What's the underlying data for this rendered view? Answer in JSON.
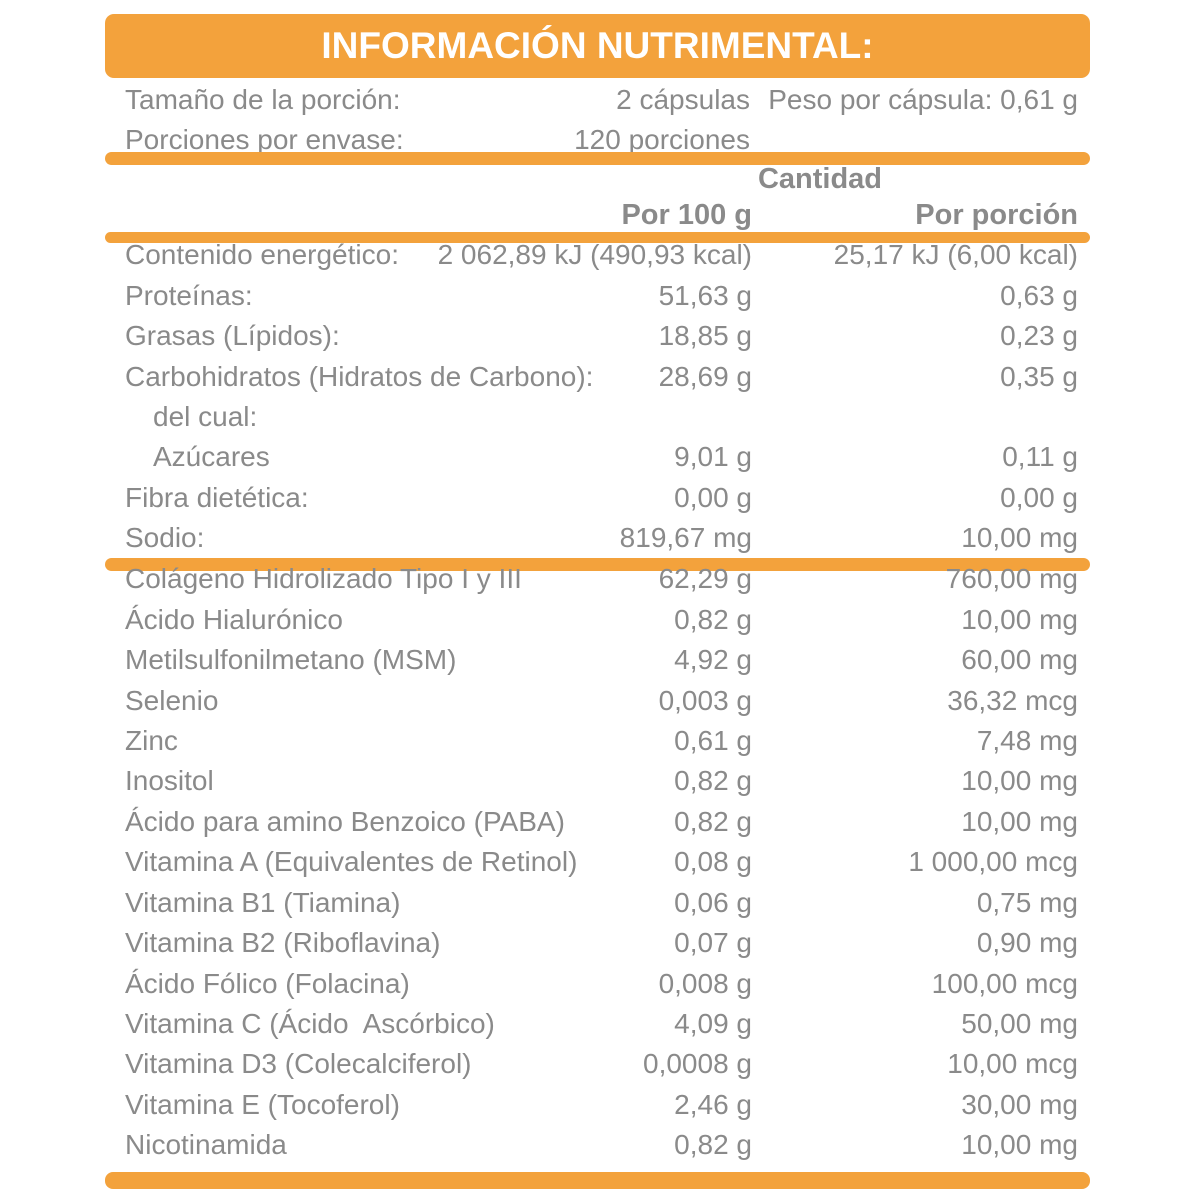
{
  "title": "INFORMACIÓN NUTRIMENTAL:",
  "serving_info": {
    "serving_size_label": "Tamaño de la porción:",
    "serving_size_value": "2 cápsulas",
    "capsule_weight": "Peso por cápsula: 0,61 g",
    "servings_label": "Porciones por envase:",
    "servings_value": "120 porciones"
  },
  "table": {
    "quantity_header": "Cantidad",
    "col_per_100g": "Por 100 g",
    "col_per_portion": "Por porción",
    "nutrients": [
      {
        "label": "Contenido energético:",
        "per100": "2 062,89 kJ (490,93 kcal)",
        "portion": "25,17 kJ (6,00 kcal)",
        "indent": false
      },
      {
        "label": "Proteínas:",
        "per100": "51,63 g",
        "portion": "0,63 g",
        "indent": false
      },
      {
        "label": "Grasas (Lípidos):",
        "per100": "18,85 g",
        "portion": "0,23 g",
        "indent": false
      },
      {
        "label": "Carbohidratos (Hidratos de Carbono):",
        "per100": "28,69 g",
        "portion": "0,35 g",
        "indent": false
      },
      {
        "label": "del cual:",
        "per100": "",
        "portion": "",
        "indent": true
      },
      {
        "label": "Azúcares",
        "per100": "9,01 g",
        "portion": "0,11 g",
        "indent": true
      },
      {
        "label": "Fibra dietética:",
        "per100": "0,00 g",
        "portion": "0,00 g",
        "indent": false
      },
      {
        "label": "Sodio:",
        "per100": "819,67 mg",
        "portion": "10,00 mg",
        "indent": false
      }
    ],
    "ingredients": [
      {
        "label": "Colágeno Hidrolizado Tipo I y III",
        "per100": "62,29 g",
        "portion": "760,00 mg",
        "indent": false
      },
      {
        "label": "Ácido Hialurónico",
        "per100": "0,82 g",
        "portion": "10,00 mg",
        "indent": false
      },
      {
        "label": "Metilsulfonilmetano (MSM)",
        "per100": "4,92 g",
        "portion": "60,00 mg",
        "indent": false
      },
      {
        "label": "Selenio",
        "per100": "0,003 g",
        "portion": "36,32 mcg",
        "indent": false
      },
      {
        "label": "Zinc",
        "per100": "0,61 g",
        "portion": "7,48 mg",
        "indent": false
      },
      {
        "label": "Inositol",
        "per100": "0,82 g",
        "portion": "10,00 mg",
        "indent": false
      },
      {
        "label": "Ácido para amino Benzoico (PABA)",
        "per100": "0,82 g",
        "portion": "10,00 mg",
        "indent": false
      },
      {
        "label": "Vitamina A (Equivalentes de Retinol)",
        "per100": "0,08 g",
        "portion": "1 000,00 mcg",
        "indent": false
      },
      {
        "label": "Vitamina B1 (Tiamina)",
        "per100": "0,06 g",
        "portion": "0,75 mg",
        "indent": false
      },
      {
        "label": "Vitamina B2 (Riboflavina)",
        "per100": "0,07 g",
        "portion": "0,90 mg",
        "indent": false
      },
      {
        "label": "Ácido Fólico (Folacina)",
        "per100": "0,008 g",
        "portion": "100,00 mcg",
        "indent": false
      },
      {
        "label": "Vitamina C (Ácido  Ascórbico)",
        "per100": "4,09 g",
        "portion": "50,00 mg",
        "indent": false
      },
      {
        "label": "Vitamina D3 (Colecalciferol)",
        "per100": "0,0008 g",
        "portion": "10,00 mcg",
        "indent": false
      },
      {
        "label": "Vitamina E (Tocoferol)",
        "per100": "2,46 g",
        "portion": "30,00 mg",
        "indent": false
      },
      {
        "label": "Nicotinamida",
        "per100": "0,82 g",
        "portion": "10,00 mg",
        "indent": false
      }
    ]
  },
  "colors": {
    "accent_orange": "#F3A23C",
    "text_gray": "#8A8A8A"
  }
}
